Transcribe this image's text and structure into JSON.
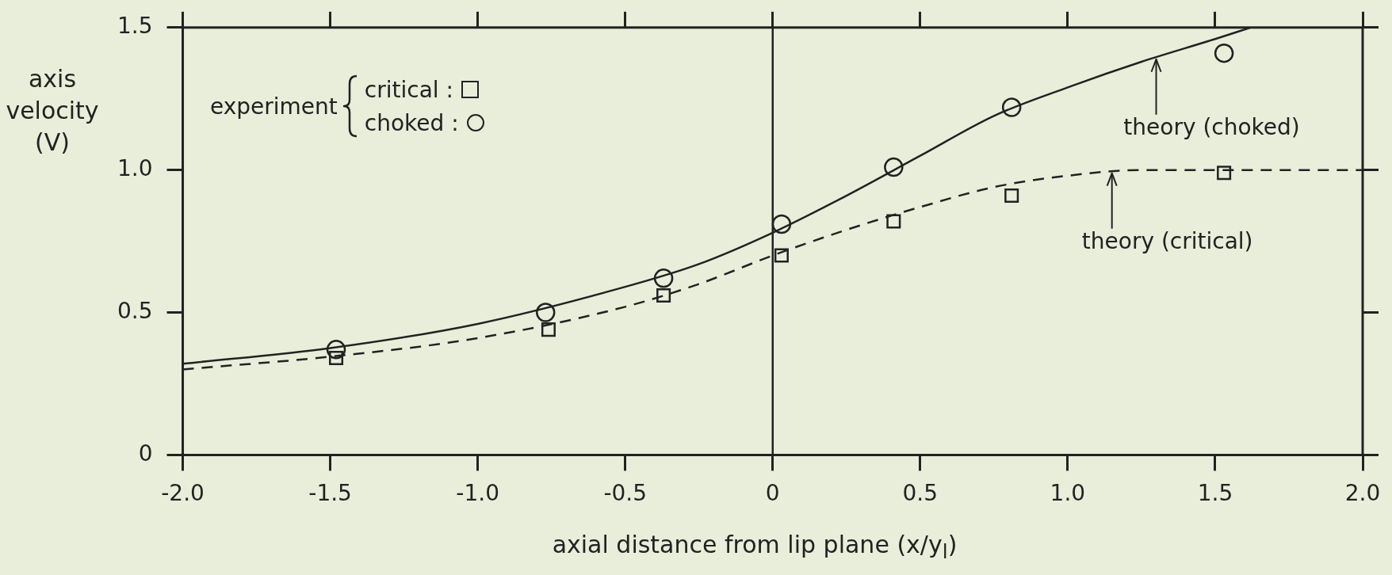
{
  "chart_data": {
    "type": "scatter",
    "xlabel": "axial distance from lip plane (x/y$_{l}$)",
    "ylabel": "axis velocity (V)",
    "legend_title": "experiment",
    "legend": "top left",
    "grid": false,
    "xlim": [
      -2,
      2
    ],
    "ylim": [
      0,
      1.5
    ],
    "xticks": [
      {
        "value": -2,
        "label": "-2.0"
      },
      {
        "value": -1.5,
        "label": "-1.5"
      },
      {
        "value": -1,
        "label": "-1.0"
      },
      {
        "value": -0.5,
        "label": "-0.5"
      },
      0,
      {
        "value": 0.5,
        "label": "0.5"
      },
      {
        "value": 1,
        "label": "1.0"
      },
      {
        "value": 1.5,
        "label": "1.5"
      },
      {
        "value": 2,
        "label": "2.0"
      }
    ],
    "yticks": [
      0,
      {
        "value": 0.5,
        "label": "0.5"
      },
      {
        "value": 1,
        "label": "1.0"
      },
      {
        "value": 1.5,
        "label": "1.5"
      }
    ],
    "ref_lines": [
      {
        "axis": "x",
        "value": 0
      }
    ],
    "annotations": [
      {
        "text": "theory (choked)",
        "x": 1.3,
        "y": 1.4
      },
      {
        "text": "theory (critical)",
        "x": 1.15,
        "y": 1.0
      }
    ],
    "series": [
      {
        "name": "critical :",
        "marker": "square",
        "color": "#222222",
        "x": [
          -1.48,
          -0.76,
          -0.37,
          0.03,
          0.41,
          0.81,
          1.53
        ],
        "values": [
          0.34,
          0.44,
          0.56,
          0.7,
          0.82,
          0.91,
          0.99
        ]
      },
      {
        "name": "choked :",
        "marker": "circle",
        "color": "#222222",
        "x": [
          -1.48,
          -0.77,
          -0.37,
          0.03,
          0.41,
          0.81,
          1.53
        ],
        "values": [
          0.37,
          0.5,
          0.62,
          0.81,
          1.01,
          1.22,
          1.41
        ]
      },
      {
        "type": "line",
        "marker": "none",
        "line_style": "dashed",
        "color": "#222222",
        "x": [
          -2,
          -1.5,
          -1,
          -0.5,
          -0.25,
          0,
          0.25,
          0.5,
          0.75,
          1,
          1.25,
          1.5,
          2
        ],
        "values": [
          0.3,
          0.345,
          0.41,
          0.52,
          0.6,
          0.7,
          0.79,
          0.87,
          0.94,
          0.98,
          1.0,
          1.0,
          1.0
        ]
      },
      {
        "type": "line",
        "marker": "none",
        "line_style": "solid",
        "color": "#222222",
        "x": [
          -2,
          -1.5,
          -1,
          -0.5,
          -0.25,
          0,
          0.25,
          0.5,
          0.75,
          1,
          1.25,
          1.5,
          1.62
        ],
        "values": [
          0.32,
          0.375,
          0.46,
          0.59,
          0.67,
          0.78,
          0.91,
          1.05,
          1.19,
          1.29,
          1.38,
          1.46,
          1.5
        ]
      }
    ]
  }
}
